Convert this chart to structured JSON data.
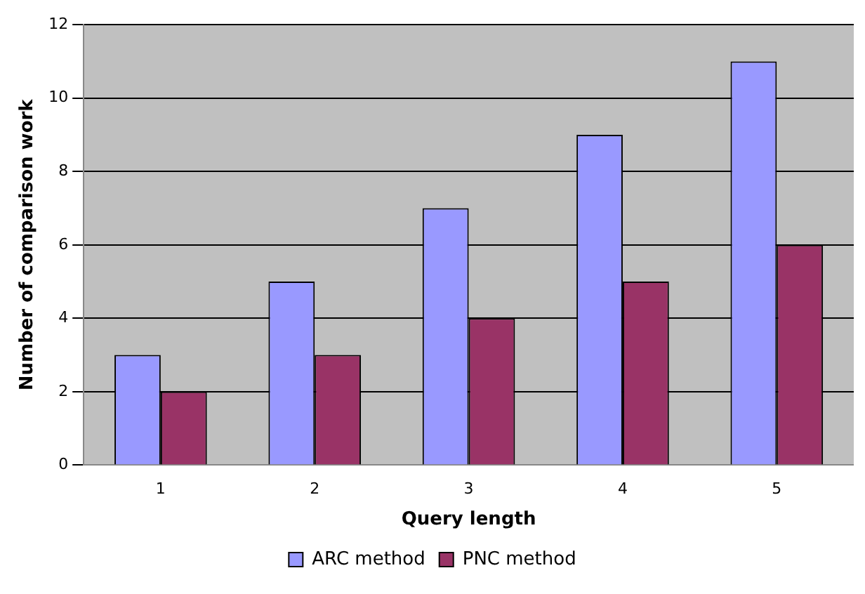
{
  "chart_data": {
    "type": "bar",
    "xlabel": "Query length",
    "ylabel": "Number of comparison work",
    "categories": [
      "1",
      "2",
      "3",
      "4",
      "5"
    ],
    "series": [
      {
        "name": "ARC method",
        "color": "#9999ff",
        "values": [
          3,
          5,
          7,
          9,
          11
        ]
      },
      {
        "name": "PNC method",
        "color": "#993366",
        "values": [
          2,
          3,
          4,
          5,
          6
        ]
      }
    ],
    "ylim": [
      0,
      12
    ],
    "yticks": [
      0,
      2,
      4,
      6,
      8,
      10,
      12
    ],
    "grid": "y",
    "legend": "bottom"
  }
}
